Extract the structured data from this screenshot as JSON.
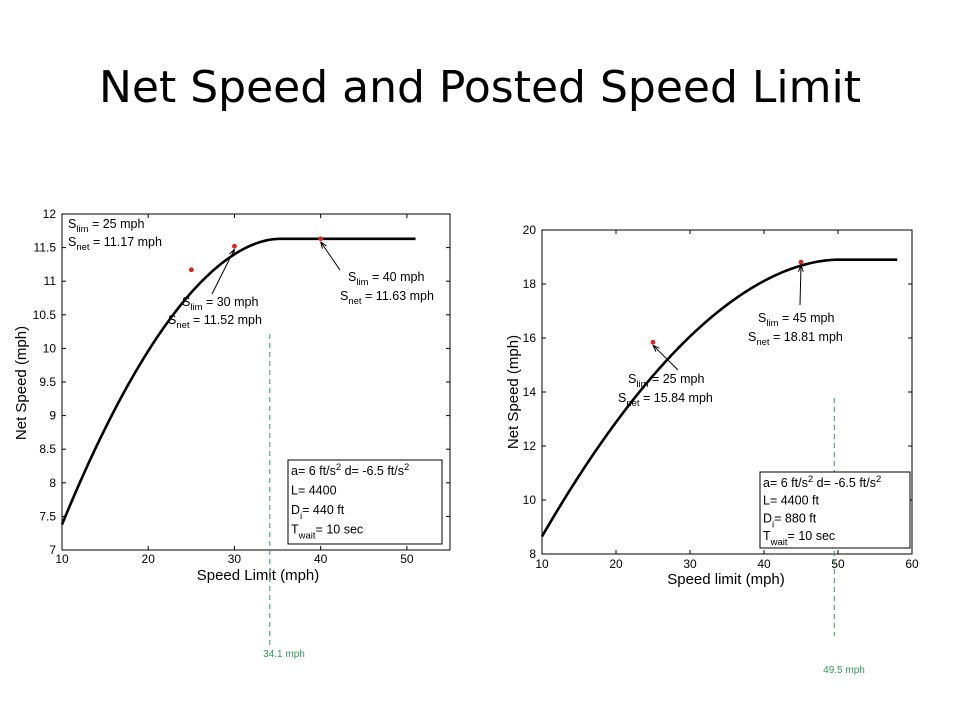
{
  "slide": {
    "title": "Net Speed and Posted Speed Limit"
  },
  "chart_data": [
    {
      "type": "line",
      "title": "",
      "xlabel": "Speed Limit (mph)",
      "ylabel": "Net Speed (mph)",
      "xlim": [
        10,
        55
      ],
      "ylim": [
        7,
        12
      ],
      "xticks": [
        10,
        20,
        30,
        40,
        50
      ],
      "yticks": [
        7,
        7.5,
        8,
        8.5,
        9,
        9.5,
        10,
        10.5,
        11,
        11.5,
        12
      ],
      "ytick_labels": [
        "7",
        "7.5",
        "8",
        "8.5",
        "9",
        "9.5",
        "10",
        "10.5",
        "11",
        "11.5",
        "12"
      ],
      "grid": false,
      "curve": {
        "x_start": 10,
        "x_peak": 35.2,
        "x_end": 51,
        "y_start": 7.38,
        "y_peak": 11.63
      },
      "highlight_points": [
        {
          "x": 25,
          "y": 11.17,
          "lim_label": "S",
          "lim_sub": "lim",
          "lim_value": "= 25 mph",
          "net_label": "S",
          "net_sub": "net",
          "net_value": "= 11.17 mph"
        },
        {
          "x": 30,
          "y": 11.52,
          "lim_label": "S",
          "lim_sub": "lim",
          "lim_value": "= 30 mph",
          "net_label": "S",
          "net_sub": "net",
          "net_value": "= 11.52 mph"
        },
        {
          "x": 40,
          "y": 11.63,
          "lim_label": "S",
          "lim_sub": "lim",
          "lim_value": "= 40 mph",
          "net_label": "S",
          "net_sub": "net",
          "net_value": "= 11.63 mph"
        }
      ],
      "reference_line": {
        "x": 34.1,
        "label": "34.1 mph"
      },
      "legend": {
        "position": "bottom-right",
        "lines": [
          {
            "pre": "a= 6 ft/s",
            "sup1": "2",
            "mid": "  d= -6.5 ft/s",
            "sup2": "2"
          },
          {
            "pre": "L= 4400"
          },
          {
            "pre": "D",
            "sub": "i",
            "post": "= 440 ft"
          },
          {
            "pre": "T",
            "sub": "wait",
            "post": "= 10 sec"
          }
        ]
      }
    },
    {
      "type": "line",
      "title": "",
      "xlabel": "Speed limit (mph)",
      "ylabel": "Net Speed (mph)",
      "xlim": [
        10,
        60
      ],
      "ylim": [
        8,
        20
      ],
      "xticks": [
        10,
        20,
        30,
        40,
        50,
        60
      ],
      "yticks": [
        8,
        10,
        12,
        14,
        16,
        18,
        20
      ],
      "ytick_labels": [
        "8",
        "10",
        "12",
        "14",
        "16",
        "18",
        "20"
      ],
      "grid": false,
      "curve": {
        "x_start": 10,
        "x_peak": 50,
        "x_end": 58,
        "y_start": 8.65,
        "y_peak": 18.9
      },
      "highlight_points": [
        {
          "x": 25,
          "y": 15.84,
          "lim_label": "S",
          "lim_sub": "lim",
          "lim_value": "= 25 mph",
          "net_label": "S",
          "net_sub": "net",
          "net_value": "= 15.84 mph"
        },
        {
          "x": 45,
          "y": 18.81,
          "lim_label": "S",
          "lim_sub": "lim",
          "lim_value": "= 45 mph",
          "net_label": "S",
          "net_sub": "net",
          "net_value": "= 18.81 mph"
        }
      ],
      "reference_line": {
        "x": 49.5,
        "label": "49.5 mph"
      },
      "legend": {
        "position": "bottom-right",
        "lines": [
          {
            "pre": "a= 6 ft/s",
            "sup1": "2",
            "mid": "  d= -6.5 ft/s",
            "sup2": "2"
          },
          {
            "pre": "L= 4400 ft"
          },
          {
            "pre": "D",
            "sub": "i",
            "post": "= 880 ft"
          },
          {
            "pre": "T",
            "sub": "wait",
            "post": "= 10 sec"
          }
        ]
      }
    }
  ]
}
